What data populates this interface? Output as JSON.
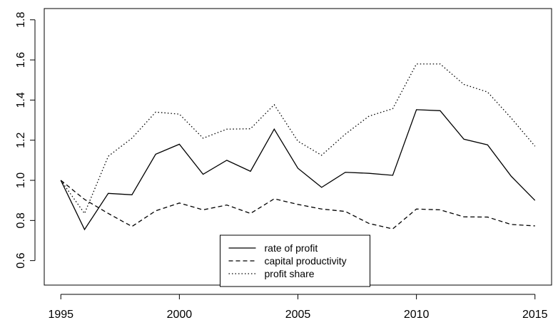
{
  "chart_data": {
    "type": "line",
    "x": [
      1995,
      1996,
      1997,
      1998,
      1999,
      2000,
      2001,
      2002,
      2003,
      2004,
      2005,
      2006,
      2007,
      2008,
      2009,
      2010,
      2011,
      2012,
      2013,
      2014,
      2015
    ],
    "series": [
      {
        "name": "rate of profit",
        "color": "#000000",
        "dash": "solid",
        "values": [
          1.0,
          0.755,
          0.935,
          0.928,
          1.13,
          1.18,
          1.03,
          1.1,
          1.045,
          1.255,
          1.06,
          0.965,
          1.04,
          1.035,
          1.025,
          1.352,
          1.347,
          1.205,
          1.177,
          1.02,
          0.9
        ]
      },
      {
        "name": "capital productivity",
        "color": "#000000",
        "dash": "dashed",
        "values": [
          1.0,
          0.905,
          0.835,
          0.77,
          0.848,
          0.887,
          0.853,
          0.877,
          0.835,
          0.908,
          0.88,
          0.857,
          0.845,
          0.785,
          0.758,
          0.857,
          0.853,
          0.818,
          0.817,
          0.78,
          0.773
        ]
      },
      {
        "name": "profit share",
        "color": "#000000",
        "dash": "dotted",
        "values": [
          1.0,
          0.835,
          1.12,
          1.21,
          1.34,
          1.33,
          1.21,
          1.255,
          1.257,
          1.377,
          1.195,
          1.125,
          1.23,
          1.32,
          1.357,
          1.58,
          1.58,
          1.478,
          1.44,
          1.31,
          1.17
        ]
      }
    ],
    "xlim": [
      1994.3,
      2015.7
    ],
    "xticks": [
      1995,
      2000,
      2005,
      2010,
      2015
    ],
    "ylim": [
      0.478,
      1.856
    ],
    "yticks": [
      0.6,
      0.8,
      {
        "value": 1,
        "label": "1.0"
      },
      1.2,
      1.4,
      1.6,
      1.8
    ],
    "grid": false,
    "legend": "bottom"
  }
}
